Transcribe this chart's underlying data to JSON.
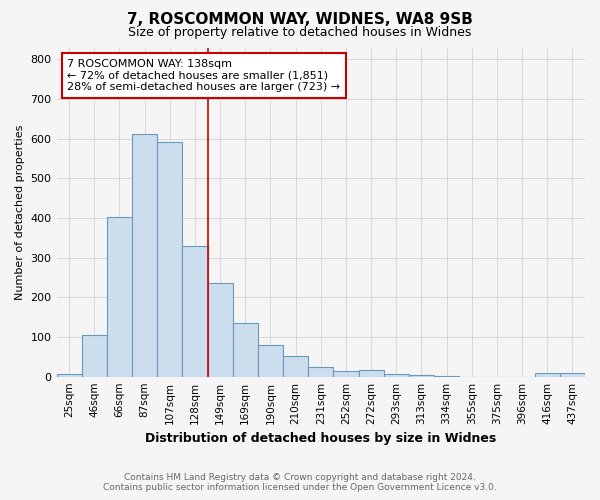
{
  "title": "7, ROSCOMMON WAY, WIDNES, WA8 9SB",
  "subtitle": "Size of property relative to detached houses in Widnes",
  "xlabel": "Distribution of detached houses by size in Widnes",
  "ylabel": "Number of detached properties",
  "footnote1": "Contains HM Land Registry data © Crown copyright and database right 2024.",
  "footnote2": "Contains public sector information licensed under the Open Government Licence v3.0.",
  "categories": [
    "25sqm",
    "46sqm",
    "66sqm",
    "87sqm",
    "107sqm",
    "128sqm",
    "149sqm",
    "169sqm",
    "190sqm",
    "210sqm",
    "231sqm",
    "252sqm",
    "272sqm",
    "293sqm",
    "313sqm",
    "334sqm",
    "355sqm",
    "375sqm",
    "396sqm",
    "416sqm",
    "437sqm"
  ],
  "values": [
    8,
    106,
    403,
    612,
    591,
    330,
    236,
    135,
    79,
    51,
    24,
    15,
    17,
    8,
    4,
    2,
    0,
    0,
    0,
    9,
    10
  ],
  "bar_color": "#ccdded",
  "bar_edge_color": "#6699bb",
  "property_line_x": 5.5,
  "property_line_color": "#cc0000",
  "annotation_line1": "7 ROSCOMMON WAY: 138sqm",
  "annotation_line2": "← 72% of detached houses are smaller (1,851)",
  "annotation_line3": "28% of semi-detached houses are larger (723) →",
  "annotation_box_color": "#ffffff",
  "annotation_box_edge": "#cc0000",
  "ylim": [
    0,
    830
  ],
  "yticks": [
    0,
    100,
    200,
    300,
    400,
    500,
    600,
    700,
    800
  ],
  "background_color": "#f5f5f5",
  "plot_bg_color": "#f5f5f5",
  "grid_color": "#d8d8d8",
  "title_fontsize": 11,
  "subtitle_fontsize": 9,
  "ylabel_fontsize": 8,
  "xlabel_fontsize": 9,
  "tick_fontsize": 7.5,
  "footnote_fontsize": 6.5,
  "footnote_color": "#666666"
}
